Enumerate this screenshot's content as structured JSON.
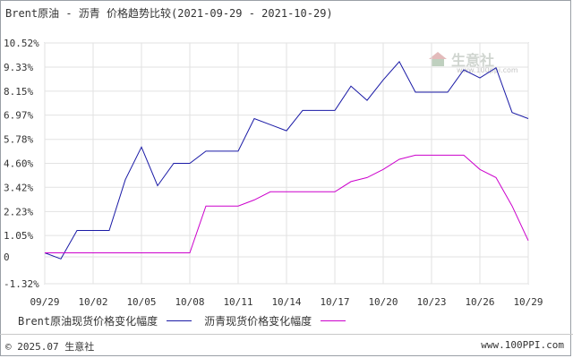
{
  "title": "Brent原油 - 沥青 价格趋势比较(2021-09-29 - 2021-10-29)",
  "watermark": {
    "text": "生意社",
    "url": "www.100ppi.com"
  },
  "footer": {
    "left": "© 2025.07 生意社",
    "right": "www.100PPI.com"
  },
  "chart_data": {
    "type": "line",
    "title": "Brent原油 - 沥青 价格趋势比较(2021-09-29 - 2021-10-29)",
    "x": [
      "09/29",
      "09/30",
      "10/01",
      "10/02",
      "10/03",
      "10/04",
      "10/05",
      "10/06",
      "10/07",
      "10/08",
      "10/09",
      "10/10",
      "10/11",
      "10/12",
      "10/13",
      "10/14",
      "10/15",
      "10/16",
      "10/17",
      "10/18",
      "10/19",
      "10/20",
      "10/21",
      "10/22",
      "10/23",
      "10/24",
      "10/25",
      "10/26",
      "10/27",
      "10/28",
      "10/29"
    ],
    "xticks": [
      "09/29",
      "10/02",
      "10/05",
      "10/08",
      "10/11",
      "10/14",
      "10/17",
      "10/20",
      "10/23",
      "10/26",
      "10/29"
    ],
    "yticks": [
      -1.32,
      0,
      1.05,
      2.23,
      3.42,
      4.6,
      5.78,
      6.97,
      8.15,
      9.33,
      10.52
    ],
    "ytick_labels": [
      "-1.32%",
      "0",
      "1.05%",
      "2.23%",
      "3.42%",
      "4.60%",
      "5.78%",
      "6.97%",
      "8.15%",
      "9.33%",
      "10.52%"
    ],
    "ylim": [
      -1.32,
      10.52
    ],
    "grid": true,
    "legend_position": "bottom",
    "series": [
      {
        "name": "Brent原油现货价格变化幅度",
        "color": "#1a1aa6",
        "values": [
          0.2,
          -0.1,
          1.3,
          1.3,
          1.3,
          3.8,
          5.4,
          3.5,
          4.6,
          4.6,
          5.2,
          5.2,
          5.2,
          6.8,
          6.5,
          6.2,
          7.2,
          7.2,
          7.2,
          8.4,
          7.7,
          8.7,
          9.6,
          8.1,
          8.1,
          8.1,
          9.2,
          8.8,
          9.3,
          7.1,
          6.8
        ]
      },
      {
        "name": "沥青现货价格变化幅度",
        "color": "#cc00cc",
        "values": [
          0.2,
          0.2,
          0.2,
          0.2,
          0.2,
          0.2,
          0.2,
          0.2,
          0.2,
          0.2,
          2.5,
          2.5,
          2.5,
          2.8,
          3.2,
          3.2,
          3.2,
          3.2,
          3.2,
          3.7,
          3.9,
          4.3,
          4.8,
          5.0,
          5.0,
          5.0,
          5.0,
          4.3,
          3.9,
          2.5,
          0.8
        ]
      }
    ]
  }
}
